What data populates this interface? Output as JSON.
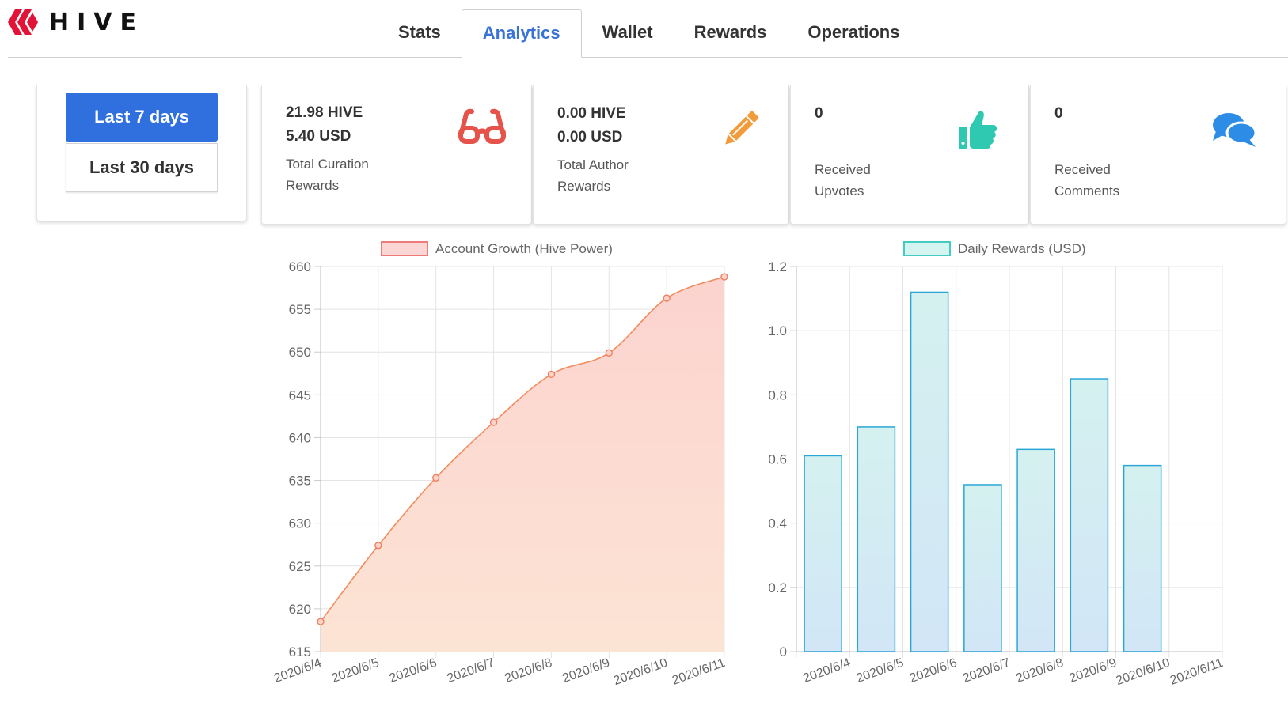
{
  "brand": {
    "name": "HIVE",
    "color": "#e31337"
  },
  "tabs": [
    {
      "label": "Stats",
      "active": false
    },
    {
      "label": "Analytics",
      "active": true
    },
    {
      "label": "Wallet",
      "active": false
    },
    {
      "label": "Rewards",
      "active": false
    },
    {
      "label": "Operations",
      "active": false
    }
  ],
  "range_buttons": {
    "seven": "Last 7 days",
    "thirty": "Last 30 days",
    "selected": "Last 7 days"
  },
  "stats": [
    {
      "line1": "21.98 HIVE",
      "line2": "5.40 USD",
      "label": "Total Curation Rewards",
      "icon": "glasses-icon",
      "color": "#e5534b"
    },
    {
      "line1": "0.00 HIVE",
      "line2": "0.00 USD",
      "label": "Total Author Rewards",
      "icon": "pencil-icon",
      "color": "#f29b3b"
    },
    {
      "line1": "0",
      "line2": "",
      "label": "Received Upvotes",
      "icon": "thumbs-up-icon",
      "color": "#2ec9b0"
    },
    {
      "line1": "0",
      "line2": "",
      "label": "Received Comments",
      "icon": "comments-icon",
      "color": "#2d8de6"
    }
  ],
  "chart_data": [
    {
      "type": "area",
      "title": "Account Growth (Hive Power)",
      "legend": "Account Growth (Hive Power)",
      "categories": [
        "2020/6/4",
        "2020/6/5",
        "2020/6/6",
        "2020/6/7",
        "2020/6/8",
        "2020/6/9",
        "2020/6/10",
        "2020/6/11"
      ],
      "values": [
        618.5,
        627.4,
        635.3,
        641.8,
        647.4,
        649.9,
        656.3,
        658.8
      ],
      "ylim": [
        615,
        660
      ],
      "yticks": [
        "660",
        "655",
        "650",
        "645",
        "640",
        "635",
        "630",
        "625",
        "620",
        "615"
      ],
      "line_color": "#f28c5e",
      "grid": true,
      "legend_position": "top"
    },
    {
      "type": "bar",
      "title": "Daily Rewards (USD)",
      "legend": "Daily Rewards (USD)",
      "categories": [
        "2020/6/4",
        "2020/6/5",
        "2020/6/6",
        "2020/6/7",
        "2020/6/8",
        "2020/6/9",
        "2020/6/10",
        "2020/6/11"
      ],
      "values": [
        0.61,
        0.7,
        1.12,
        0.52,
        0.63,
        0.85,
        0.58,
        0
      ],
      "ylim": [
        0,
        1.2
      ],
      "yticks": [
        "1.2",
        "1.0",
        "0.8",
        "0.6",
        "0.4",
        "0.2",
        "0"
      ],
      "bar_color": "#2aa7d6",
      "grid": true,
      "legend_position": "top"
    }
  ]
}
